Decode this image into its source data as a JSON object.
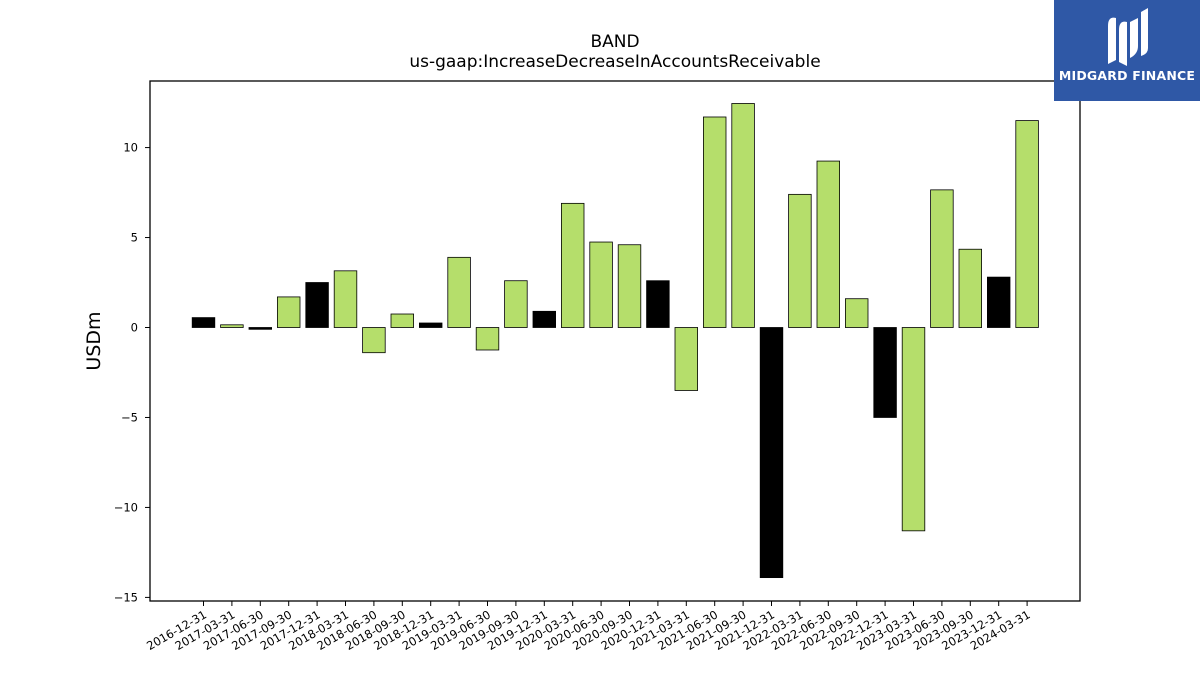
{
  "chart_data": {
    "type": "bar",
    "title": "BAND",
    "subtitle": "us-gaap:IncreaseDecreaseInAccountsReceivable",
    "xlabel": "",
    "ylabel": "USDm",
    "ylim": [
      -15.2,
      13.7
    ],
    "yticks": [
      -15,
      -10,
      -5,
      0,
      5,
      10
    ],
    "ytick_labels": [
      "−15",
      "−10",
      "−5",
      "0",
      "5",
      "10"
    ],
    "grid": false,
    "categories": [
      "2016-12-31",
      "2017-03-31",
      "2017-06-30",
      "2017-09-30",
      "2017-12-31",
      "2018-03-31",
      "2018-06-30",
      "2018-09-30",
      "2018-12-31",
      "2019-03-31",
      "2019-06-30",
      "2019-09-30",
      "2019-12-31",
      "2020-03-31",
      "2020-06-30",
      "2020-09-30",
      "2020-12-31",
      "2021-03-31",
      "2021-06-30",
      "2021-09-30",
      "2021-12-31",
      "2022-03-31",
      "2022-06-30",
      "2022-09-30",
      "2022-12-31",
      "2023-03-31",
      "2023-06-30",
      "2023-09-30",
      "2023-12-31",
      "2024-03-31"
    ],
    "values": [
      0.55,
      0.15,
      -0.1,
      1.7,
      2.5,
      3.15,
      -1.4,
      0.75,
      0.25,
      3.9,
      -1.25,
      2.6,
      0.9,
      6.9,
      4.75,
      4.6,
      2.6,
      -3.5,
      11.7,
      12.45,
      -13.9,
      7.4,
      9.25,
      1.6,
      -5.0,
      -11.3,
      7.65,
      4.35,
      2.8,
      11.5
    ],
    "bar_colors": [
      "#000000",
      "#b5de6b",
      "#000000",
      "#b5de6b",
      "#000000",
      "#b5de6b",
      "#b5de6b",
      "#b5de6b",
      "#000000",
      "#b5de6b",
      "#b5de6b",
      "#b5de6b",
      "#000000",
      "#b5de6b",
      "#b5de6b",
      "#b5de6b",
      "#000000",
      "#b5de6b",
      "#b5de6b",
      "#b5de6b",
      "#000000",
      "#b5de6b",
      "#b5de6b",
      "#b5de6b",
      "#000000",
      "#b5de6b",
      "#b5de6b",
      "#b5de6b",
      "#000000",
      "#b5de6b"
    ]
  },
  "logo": {
    "text": "MIDGARD FINANCE",
    "background": "#2f58a6"
  }
}
